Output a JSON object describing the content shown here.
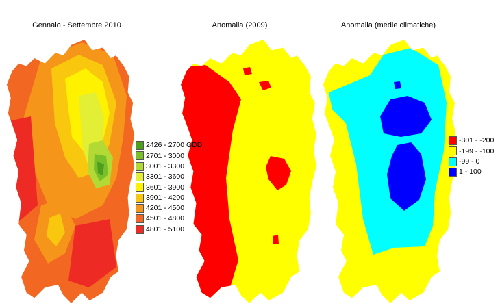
{
  "panels": [
    {
      "title": "Gennaio - Settembre 2010",
      "legend": [
        {
          "label": "2426 - 2700 GDD",
          "color": "#4c9e1c"
        },
        {
          "label": "2701 - 3000",
          "color": "#79bf2a"
        },
        {
          "label": "3001 - 3300",
          "color": "#b3d935"
        },
        {
          "label": "3301 - 3600",
          "color": "#e2ef35"
        },
        {
          "label": "3601 - 3900",
          "color": "#fff200"
        },
        {
          "label": "3901 - 4200",
          "color": "#f9c80e"
        },
        {
          "label": "4201 - 4500",
          "color": "#f5961b"
        },
        {
          "label": "4501 - 4800",
          "color": "#f26722"
        },
        {
          "label": "4801 - 5100",
          "color": "#ee2a24"
        }
      ]
    },
    {
      "title": "Anomalia (2009)"
    },
    {
      "title": "Anomalia (medie climatiche)",
      "legend": [
        {
          "label": "-301 - -200",
          "color": "#ff0000"
        },
        {
          "label": "-199 - -100",
          "color": "#ffff00"
        },
        {
          "label": "-99 - 0",
          "color": "#00ffff"
        },
        {
          "label": "1 - 100",
          "color": "#0000ff"
        }
      ]
    }
  ]
}
